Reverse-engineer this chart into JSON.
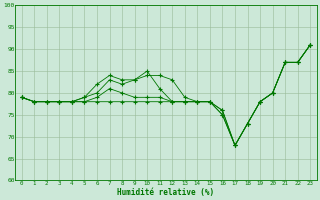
{
  "xlabel": "Humidité relative (%)",
  "xlim": [
    -0.5,
    23.5
  ],
  "ylim": [
    60,
    100
  ],
  "yticks": [
    60,
    65,
    70,
    75,
    80,
    85,
    90,
    95,
    100
  ],
  "xticks": [
    0,
    1,
    2,
    3,
    4,
    5,
    6,
    7,
    8,
    9,
    10,
    11,
    12,
    13,
    14,
    15,
    16,
    17,
    18,
    19,
    20,
    21,
    22,
    23
  ],
  "background_color": "#cce8d8",
  "grid_color": "#99bb99",
  "line_color": "#007700",
  "series": [
    [
      79,
      78,
      78,
      78,
      78,
      79,
      82,
      84,
      83,
      83,
      84,
      84,
      83,
      79,
      78,
      78,
      76,
      68,
      73,
      78,
      80,
      87,
      87,
      91
    ],
    [
      79,
      78,
      78,
      78,
      78,
      79,
      80,
      83,
      82,
      83,
      85,
      81,
      78,
      78,
      78,
      78,
      76,
      68,
      73,
      78,
      80,
      87,
      87,
      91
    ],
    [
      79,
      78,
      78,
      78,
      78,
      78,
      79,
      81,
      80,
      79,
      79,
      79,
      78,
      78,
      78,
      78,
      75,
      68,
      73,
      78,
      80,
      87,
      87,
      91
    ],
    [
      79,
      78,
      78,
      78,
      78,
      78,
      78,
      78,
      78,
      78,
      78,
      78,
      78,
      78,
      78,
      78,
      75,
      68,
      73,
      78,
      80,
      87,
      87,
      91
    ]
  ]
}
